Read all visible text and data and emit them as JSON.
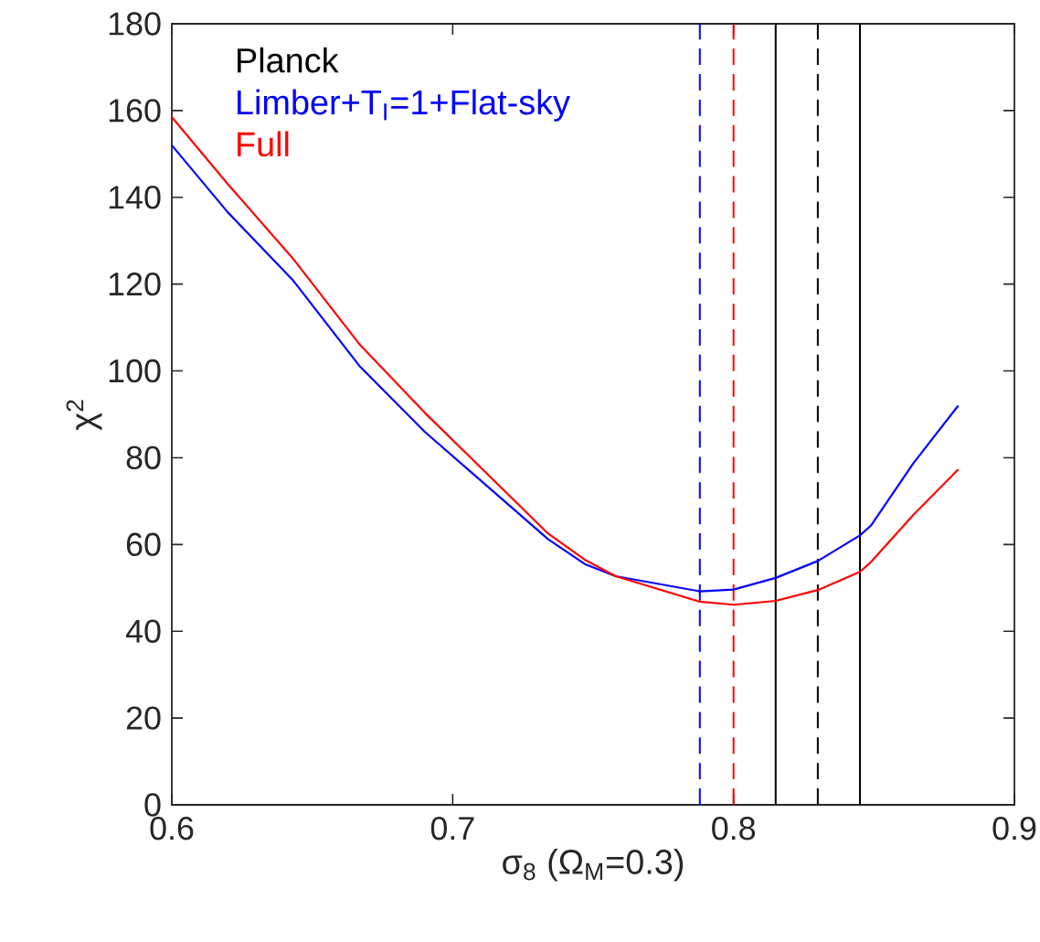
{
  "chart_data": {
    "type": "line",
    "xlabel": "σ$_{8}$ (Ω$_{M}$=0.3)",
    "ylabel": "χ$^{2}$",
    "xlim": [
      0.6,
      0.9
    ],
    "ylim": [
      0,
      180
    ],
    "xticks": [
      0.6,
      0.7,
      0.8,
      0.9
    ],
    "yticks": [
      0,
      20,
      40,
      60,
      80,
      100,
      120,
      140,
      160,
      180
    ],
    "grid": false,
    "legend": "top left",
    "marker": "none",
    "line_style": "solid",
    "series": [
      {
        "name": "Limber+T$_{I}$=1+Flat-sky",
        "color": "#0000ff",
        "x": [
          0.6,
          0.62,
          0.643,
          0.667,
          0.69,
          0.734,
          0.747,
          0.758,
          0.788,
          0.8,
          0.815,
          0.83,
          0.845,
          0.849,
          0.864,
          0.88
        ],
        "values": [
          152,
          136.5,
          121,
          101,
          86,
          61.2,
          55.5,
          52.7,
          49.2,
          49.6,
          52.3,
          56.2,
          62.1,
          64.4,
          78.7,
          92
        ]
      },
      {
        "name": "Full",
        "color": "#ff0000",
        "x": [
          0.6,
          0.62,
          0.643,
          0.667,
          0.69,
          0.734,
          0.747,
          0.758,
          0.788,
          0.8,
          0.815,
          0.83,
          0.845,
          0.849,
          0.864,
          0.88
        ],
        "values": [
          158.5,
          143,
          126,
          106,
          90.4,
          62.5,
          56.5,
          52.7,
          46.8,
          46.1,
          47,
          49.5,
          53.7,
          56,
          66.8,
          77.3
        ]
      }
    ],
    "ref_lines": [
      {
        "axis": "x",
        "value": 0.788,
        "color": "#0000ff",
        "line_style": "dashed"
      },
      {
        "axis": "x",
        "value": 0.8,
        "color": "#ff0000",
        "line_style": "dashed"
      },
      {
        "axis": "x",
        "value": 0.815,
        "color": "#000000",
        "line_style": "solid"
      },
      {
        "axis": "x",
        "value": 0.83,
        "color": "#000000",
        "line_style": "dashed",
        "label": "Planck"
      },
      {
        "axis": "x",
        "value": 0.845,
        "color": "#000000",
        "line_style": "solid"
      }
    ]
  }
}
